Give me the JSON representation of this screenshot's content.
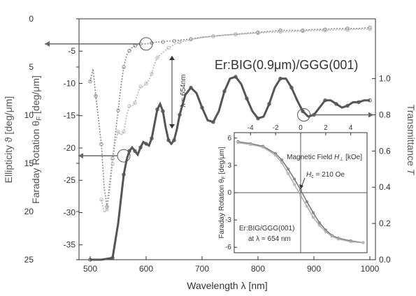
{
  "chart_data": [
    {
      "type": "line",
      "xlabel": "Wavelength λ [nm]",
      "ylabel_ellipticity": "Ellipticity ϑ [deg/μm]",
      "ylabel_faraday": "Faraday Rotation θF [deg/μm]",
      "ylabel_faraday_main": "Faraday Rotation θ",
      "ylabel_faraday_sub": "F",
      "ylabel_faraday_unit": " [deg/μm]",
      "ylabel_transmittance": "Transmittance T",
      "ylabel_transmittance_main": "Transmittance ",
      "ylabel_transmittance_italic": "T",
      "xlim": [
        480,
        1010
      ],
      "x_ticks": [
        500,
        600,
        700,
        800,
        900,
        1000
      ],
      "ylim_ellipticity": [
        0,
        25
      ],
      "y_ticks_ellipticity": [
        0,
        5,
        10,
        15,
        20,
        25
      ],
      "ylim_faraday": [
        -37.3,
        0
      ],
      "y_ticks_faraday": [
        -5,
        -10,
        -15,
        -20,
        -25,
        -30,
        -35
      ],
      "ylim_transmittance": [
        0,
        1.33
      ],
      "y_ticks_transmittance": [
        "0.0",
        "0.2",
        "0.4",
        "0.6",
        "0.8",
        "1.0"
      ],
      "annotation_sample": "Er:BIG(0.9μm)/GGG(001)",
      "annotation_wavelength": "λ = 654nm",
      "series": [
        {
          "axis": "ellipticity",
          "color": "#888888",
          "x": [
            500,
            505,
            510,
            515,
            520,
            525,
            530,
            535,
            540,
            545,
            550,
            555,
            560,
            565,
            570,
            575,
            580,
            585,
            590,
            600,
            610,
            620,
            630,
            640,
            650,
            660,
            680,
            700,
            720,
            740,
            760,
            780,
            800,
            820,
            840,
            860,
            880,
            900,
            920,
            940,
            960,
            980,
            1000
          ],
          "y": [
            6.5,
            5.2,
            8.0,
            10.5,
            13.0,
            17.5,
            19.5,
            17.0,
            14.5,
            12.0,
            9.5,
            7.0,
            5.0,
            3.8,
            3.3,
            3.0,
            2.8,
            2.7,
            2.6,
            2.6,
            2.5,
            2.4,
            2.4,
            2.3,
            2.3,
            2.2,
            2.1,
            1.9,
            1.8,
            1.7,
            1.6,
            1.5,
            1.4,
            1.3,
            1.2,
            1.2,
            1.2,
            1.1,
            1.1,
            1.0,
            1.0,
            1.0,
            0.9
          ]
        },
        {
          "axis": "faraday",
          "color": "#b5b5b5",
          "x": [
            520,
            525,
            530,
            535,
            540,
            545,
            550,
            555,
            560,
            565,
            570,
            575,
            580,
            585,
            590,
            595,
            600,
            605,
            610,
            615,
            620,
            630,
            640,
            650,
            660,
            670,
            680,
            700,
            720,
            740,
            760,
            780,
            800,
            820,
            840,
            860,
            880,
            900,
            920,
            940,
            960,
            980,
            1000
          ],
          "y": [
            -28.0,
            -30.0,
            -29.5,
            -26.5,
            -22.5,
            -19.0,
            -17.5,
            -18.0,
            -17.5,
            -15.0,
            -13.5,
            -13.5,
            -13.0,
            -11.5,
            -10.5,
            -10.5,
            -10.0,
            -9.5,
            -8.5,
            -7.0,
            -6.0,
            -5.2,
            -4.5,
            -4.0,
            -3.6,
            -3.4,
            -3.2,
            -2.9,
            -2.7,
            -2.5,
            -2.4,
            -2.3,
            -2.2,
            -2.1,
            -2.0,
            -2.0,
            -1.9,
            -1.8,
            -1.8,
            -1.7,
            -1.7,
            -1.6,
            -1.6
          ]
        },
        {
          "axis": "transmittance",
          "color": "#555555",
          "x": [
            500,
            520,
            540,
            550,
            560,
            565,
            570,
            575,
            580,
            585,
            590,
            595,
            600,
            605,
            610,
            615,
            620,
            625,
            630,
            635,
            640,
            645,
            650,
            655,
            660,
            670,
            680,
            690,
            700,
            710,
            720,
            730,
            740,
            750,
            760,
            770,
            780,
            790,
            800,
            810,
            820,
            830,
            840,
            850,
            860,
            870,
            880,
            890,
            900,
            910,
            920,
            930,
            940,
            950,
            960,
            970,
            980,
            990,
            1000
          ],
          "y": [
            0.0,
            0.0,
            0.01,
            0.2,
            0.47,
            0.55,
            0.6,
            0.62,
            0.6,
            0.58,
            0.62,
            0.65,
            0.64,
            0.63,
            0.67,
            0.75,
            0.83,
            0.86,
            0.82,
            0.73,
            0.66,
            0.64,
            0.66,
            0.72,
            0.8,
            0.91,
            0.95,
            0.92,
            0.84,
            0.77,
            0.76,
            0.82,
            0.93,
            1.0,
            1.01,
            0.97,
            0.89,
            0.82,
            0.78,
            0.79,
            0.86,
            0.95,
            1.0,
            1.0,
            0.95,
            0.88,
            0.82,
            0.79,
            0.8,
            0.84,
            0.88,
            0.88,
            0.86,
            0.84,
            0.85,
            0.87,
            0.87,
            0.88,
            0.88
          ]
        }
      ]
    },
    {
      "type": "line",
      "title": "",
      "xlabel": "Magnetic Field H⊥ [kOe]",
      "xlabel_main": "Magnetic Field ",
      "xlabel_italic": "H",
      "xlabel_sub": "⊥",
      "xlabel_unit": " [kOe]",
      "ylabel": "Faraday Rotation θF [deg/μm]",
      "ylabel_main": "Faraday Rotation θ",
      "ylabel_sub": "F",
      "ylabel_unit": " [deg/μm]",
      "xlim": [
        -5.3,
        5.3
      ],
      "x_ticks": [
        -4,
        -2,
        0,
        2,
        4
      ],
      "ylim": [
        -6.6,
        6.6
      ],
      "y_ticks": [
        -6,
        -3,
        0,
        3,
        6
      ],
      "coercivity_label": "Hc = 210 Oe",
      "coercivity_italic": "H",
      "coercivity_sub": "c",
      "coercivity_value": " = 210 Oe",
      "sample_label": "Er:BIG/GGG(001)",
      "wavelength_label": "at λ = 654 nm",
      "series": [
        {
          "name_hidden": "forward",
          "color": "#7a7a7a",
          "x": [
            -5.0,
            -4.0,
            -3.0,
            -2.0,
            -1.5,
            -1.0,
            -0.5,
            0.0,
            0.5,
            1.0,
            1.5,
            2.0,
            2.5,
            3.0,
            4.0,
            5.0
          ],
          "y": [
            5.6,
            5.4,
            5.1,
            4.3,
            3.6,
            2.6,
            1.5,
            0.3,
            -1.0,
            -2.2,
            -3.3,
            -4.1,
            -4.7,
            -5.0,
            -5.3,
            -5.5
          ]
        },
        {
          "name_hidden": "reverse",
          "color": "#b0b0b0",
          "x": [
            -5.0,
            -4.0,
            -3.0,
            -2.0,
            -1.5,
            -1.0,
            -0.5,
            0.0,
            0.5,
            1.0,
            1.5,
            2.0,
            2.5,
            3.0,
            4.0,
            5.0
          ],
          "y": [
            5.5,
            5.3,
            5.0,
            4.1,
            3.3,
            2.1,
            0.9,
            -0.3,
            -1.5,
            -2.7,
            -3.6,
            -4.3,
            -4.8,
            -5.1,
            -5.4,
            -5.5
          ]
        }
      ]
    }
  ]
}
